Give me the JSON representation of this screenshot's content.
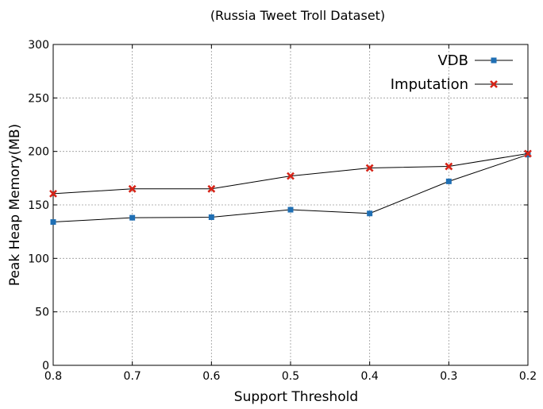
{
  "chart_data": {
    "type": "line",
    "title": "(Russia Tweet Troll Dataset)",
    "xlabel": "Support Threshold",
    "ylabel": "Peak Heap Memory(MB)",
    "x": [
      0.8,
      0.7,
      0.6,
      0.5,
      0.4,
      0.3,
      0.2
    ],
    "x_tick_labels": [
      "0.8",
      "0.7",
      "0.6",
      "0.5",
      "0.4",
      "0.3",
      "0.2"
    ],
    "xlim": [
      0.8,
      0.2
    ],
    "ylim": [
      0,
      300
    ],
    "y_ticks": [
      0,
      50,
      100,
      150,
      200,
      250,
      300
    ],
    "y_tick_labels": [
      "0",
      "50",
      "100",
      "150",
      "200",
      "250",
      "300"
    ],
    "grid": true,
    "legend_position": "top-right",
    "series": [
      {
        "name": "VDB",
        "marker": "square",
        "color": "#1f6fb4",
        "values": [
          134,
          138,
          138.5,
          145.5,
          142,
          172,
          197
        ]
      },
      {
        "name": "Imputation",
        "marker": "x",
        "color": "#d62418",
        "values": [
          160.5,
          165,
          165,
          177,
          184.5,
          186,
          198
        ]
      }
    ]
  }
}
